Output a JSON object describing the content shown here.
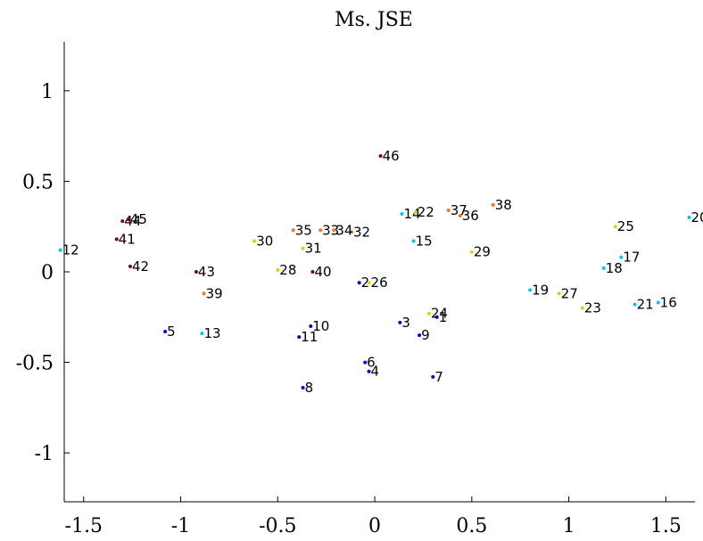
{
  "chart_data": {
    "type": "scatter",
    "title": "Ms. JSE",
    "xlabel": "",
    "ylabel": "",
    "xlim": [
      -1.6,
      1.65
    ],
    "ylim": [
      -1.27,
      1.27
    ],
    "xticks": [
      -1.5,
      -1,
      -0.5,
      0,
      0.5,
      1,
      1.5
    ],
    "xtick_labels": [
      "-1.5",
      "-1",
      "-0.5",
      "0",
      "0.5",
      "1",
      "1.5"
    ],
    "yticks": [
      -1,
      -0.5,
      0,
      0.5,
      1
    ],
    "ytick_labels": [
      "-1",
      "-0.5",
      "0",
      "0.5",
      "1"
    ],
    "box": "left-bottom axes only",
    "grid": false,
    "colors": {
      "blue": "#0000e0",
      "cyan": "#00c8e8",
      "yellow": "#e8d000",
      "orange": "#f07828",
      "darkred": "#8a0000"
    },
    "points": [
      {
        "label": "1",
        "x": 0.32,
        "y": -0.25,
        "color": "blue"
      },
      {
        "label": "2",
        "x": -0.08,
        "y": -0.06,
        "color": "blue"
      },
      {
        "label": "3",
        "x": 0.13,
        "y": -0.28,
        "color": "blue"
      },
      {
        "label": "4",
        "x": -0.03,
        "y": -0.55,
        "color": "blue"
      },
      {
        "label": "5",
        "x": -1.08,
        "y": -0.33,
        "color": "blue"
      },
      {
        "label": "6",
        "x": -0.05,
        "y": -0.5,
        "color": "blue"
      },
      {
        "label": "7",
        "x": 0.3,
        "y": -0.58,
        "color": "blue"
      },
      {
        "label": "8",
        "x": -0.37,
        "y": -0.64,
        "color": "blue"
      },
      {
        "label": "9",
        "x": 0.23,
        "y": -0.35,
        "color": "blue"
      },
      {
        "label": "10",
        "x": -0.33,
        "y": -0.3,
        "color": "blue"
      },
      {
        "label": "11",
        "x": -0.39,
        "y": -0.36,
        "color": "blue"
      },
      {
        "label": "12",
        "x": -1.62,
        "y": 0.12,
        "color": "cyan"
      },
      {
        "label": "13",
        "x": -0.89,
        "y": -0.34,
        "color": "cyan"
      },
      {
        "label": "14",
        "x": 0.14,
        "y": 0.32,
        "color": "cyan"
      },
      {
        "label": "15",
        "x": 0.2,
        "y": 0.17,
        "color": "cyan"
      },
      {
        "label": "16",
        "x": 1.46,
        "y": -0.17,
        "color": "cyan"
      },
      {
        "label": "17",
        "x": 1.27,
        "y": 0.08,
        "color": "cyan"
      },
      {
        "label": "18",
        "x": 1.18,
        "y": 0.02,
        "color": "cyan"
      },
      {
        "label": "19",
        "x": 0.8,
        "y": -0.1,
        "color": "cyan"
      },
      {
        "label": "20",
        "x": 1.62,
        "y": 0.3,
        "color": "cyan"
      },
      {
        "label": "21",
        "x": 1.34,
        "y": -0.18,
        "color": "cyan"
      },
      {
        "label": "22",
        "x": 0.21,
        "y": 0.33,
        "color": "yellow"
      },
      {
        "label": "23",
        "x": 1.07,
        "y": -0.2,
        "color": "yellow"
      },
      {
        "label": "24",
        "x": 0.28,
        "y": -0.23,
        "color": "yellow"
      },
      {
        "label": "25",
        "x": 1.24,
        "y": 0.25,
        "color": "yellow"
      },
      {
        "label": "26",
        "x": -0.03,
        "y": -0.06,
        "color": "yellow"
      },
      {
        "label": "27",
        "x": 0.95,
        "y": -0.12,
        "color": "yellow"
      },
      {
        "label": "28",
        "x": -0.5,
        "y": 0.01,
        "color": "yellow"
      },
      {
        "label": "29",
        "x": 0.5,
        "y": 0.11,
        "color": "yellow"
      },
      {
        "label": "30",
        "x": -0.62,
        "y": 0.17,
        "color": "yellow"
      },
      {
        "label": "31",
        "x": -0.37,
        "y": 0.13,
        "color": "yellow"
      },
      {
        "label": "32",
        "x": -0.12,
        "y": 0.22,
        "color": "orange"
      },
      {
        "label": "33",
        "x": -0.28,
        "y": 0.23,
        "color": "orange"
      },
      {
        "label": "34",
        "x": -0.21,
        "y": 0.23,
        "color": "orange"
      },
      {
        "label": "35",
        "x": -0.42,
        "y": 0.23,
        "color": "orange"
      },
      {
        "label": "36",
        "x": 0.44,
        "y": 0.31,
        "color": "orange"
      },
      {
        "label": "37",
        "x": 0.38,
        "y": 0.34,
        "color": "orange"
      },
      {
        "label": "38",
        "x": 0.61,
        "y": 0.37,
        "color": "orange"
      },
      {
        "label": "39",
        "x": -0.88,
        "y": -0.12,
        "color": "orange"
      },
      {
        "label": "40",
        "x": -0.32,
        "y": 0.0,
        "color": "darkred"
      },
      {
        "label": "41",
        "x": -1.33,
        "y": 0.18,
        "color": "darkred"
      },
      {
        "label": "42",
        "x": -1.26,
        "y": 0.03,
        "color": "darkred"
      },
      {
        "label": "43",
        "x": -0.92,
        "y": 0.0,
        "color": "darkred"
      },
      {
        "label": "44",
        "x": -1.3,
        "y": 0.28,
        "color": "darkred"
      },
      {
        "label": "45",
        "x": -1.27,
        "y": 0.29,
        "color": "darkred"
      },
      {
        "label": "46",
        "x": 0.03,
        "y": 0.64,
        "color": "darkred"
      }
    ]
  }
}
